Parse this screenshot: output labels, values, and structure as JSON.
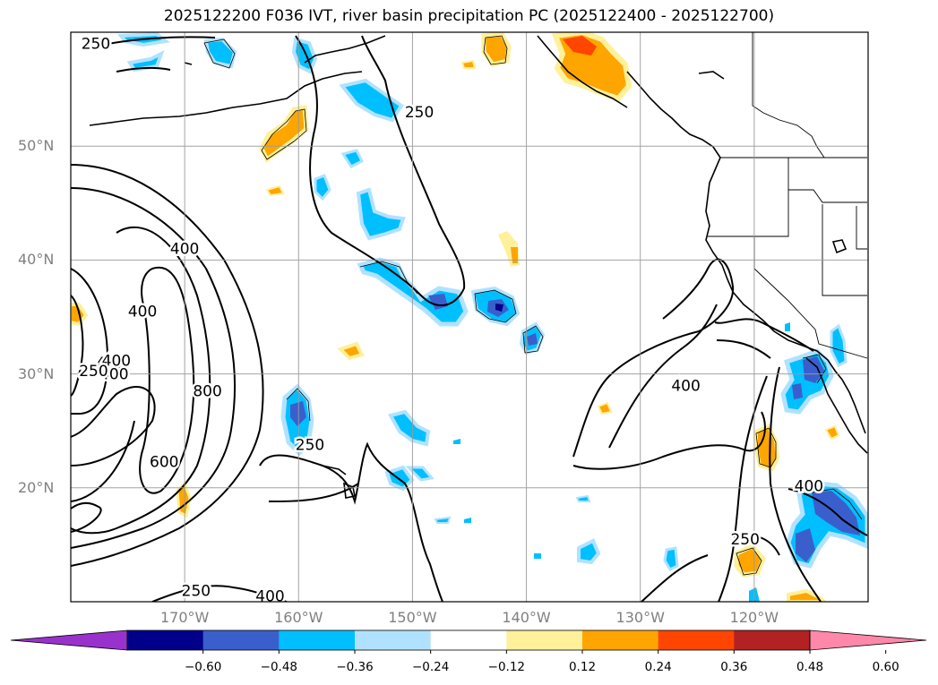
{
  "title": "2025122200 F036 IVT, river basin precipitation PC (2025122400 - 2025122700)",
  "map": {
    "lon_range": [
      -180,
      -110
    ],
    "lat_range": [
      10,
      60
    ],
    "lat_ticks": [
      {
        "value": 50,
        "label": "50°N"
      },
      {
        "value": 40,
        "label": "40°N"
      },
      {
        "value": 30,
        "label": "30°N"
      },
      {
        "value": 20,
        "label": "20°N"
      }
    ],
    "lon_ticks": [
      {
        "value": -170,
        "label": "170°W"
      },
      {
        "value": -160,
        "label": "160°W"
      },
      {
        "value": -150,
        "label": "150°W"
      },
      {
        "value": -140,
        "label": "140°W"
      },
      {
        "value": -130,
        "label": "130°W"
      },
      {
        "value": -120,
        "label": "120°W"
      }
    ],
    "grid": true,
    "ivt_contour_labels": [
      {
        "text": "250",
        "lon": -177.8,
        "lat": 59.0
      },
      {
        "text": "250",
        "lon": -149.4,
        "lat": 53.0
      },
      {
        "text": "400",
        "lon": -170.0,
        "lat": 41.0
      },
      {
        "text": "400",
        "lon": -176.5,
        "lat": 31.0
      },
      {
        "text": "400",
        "lon": -176.0,
        "lat": 31.2
      },
      {
        "text": "400",
        "lon": -176.2,
        "lat": 30.0
      },
      {
        "text": "250",
        "lon": -178.0,
        "lat": 30.3
      },
      {
        "text": "400",
        "lon": -173.7,
        "lat": 35.5
      },
      {
        "text": "800",
        "lon": -168.0,
        "lat": 28.5
      },
      {
        "text": "600",
        "lon": -171.8,
        "lat": 22.3
      },
      {
        "text": "250",
        "lon": -159.0,
        "lat": 23.8
      },
      {
        "text": "250",
        "lon": -169.0,
        "lat": 11.0
      },
      {
        "text": "400",
        "lon": -162.5,
        "lat": 10.5
      },
      {
        "text": "400",
        "lon": -126.0,
        "lat": 29.0
      },
      {
        "text": "400",
        "lon": -115.2,
        "lat": 20.2
      },
      {
        "text": "250",
        "lon": -120.8,
        "lat": 15.5
      }
    ]
  },
  "colorbar": {
    "colors": [
      "#9932cc",
      "#00008b",
      "#3a5fcd",
      "#00bfff",
      "#b0e2ff",
      "#ffffff",
      "#fff09a",
      "#ffa500",
      "#ff4500",
      "#b22222",
      "#ff88aa"
    ],
    "labels": [
      "−0.60",
      "−0.48",
      "−0.36",
      "−0.24",
      "−0.12",
      "0.12",
      "0.24",
      "0.36",
      "0.48",
      "0.60"
    ]
  }
}
